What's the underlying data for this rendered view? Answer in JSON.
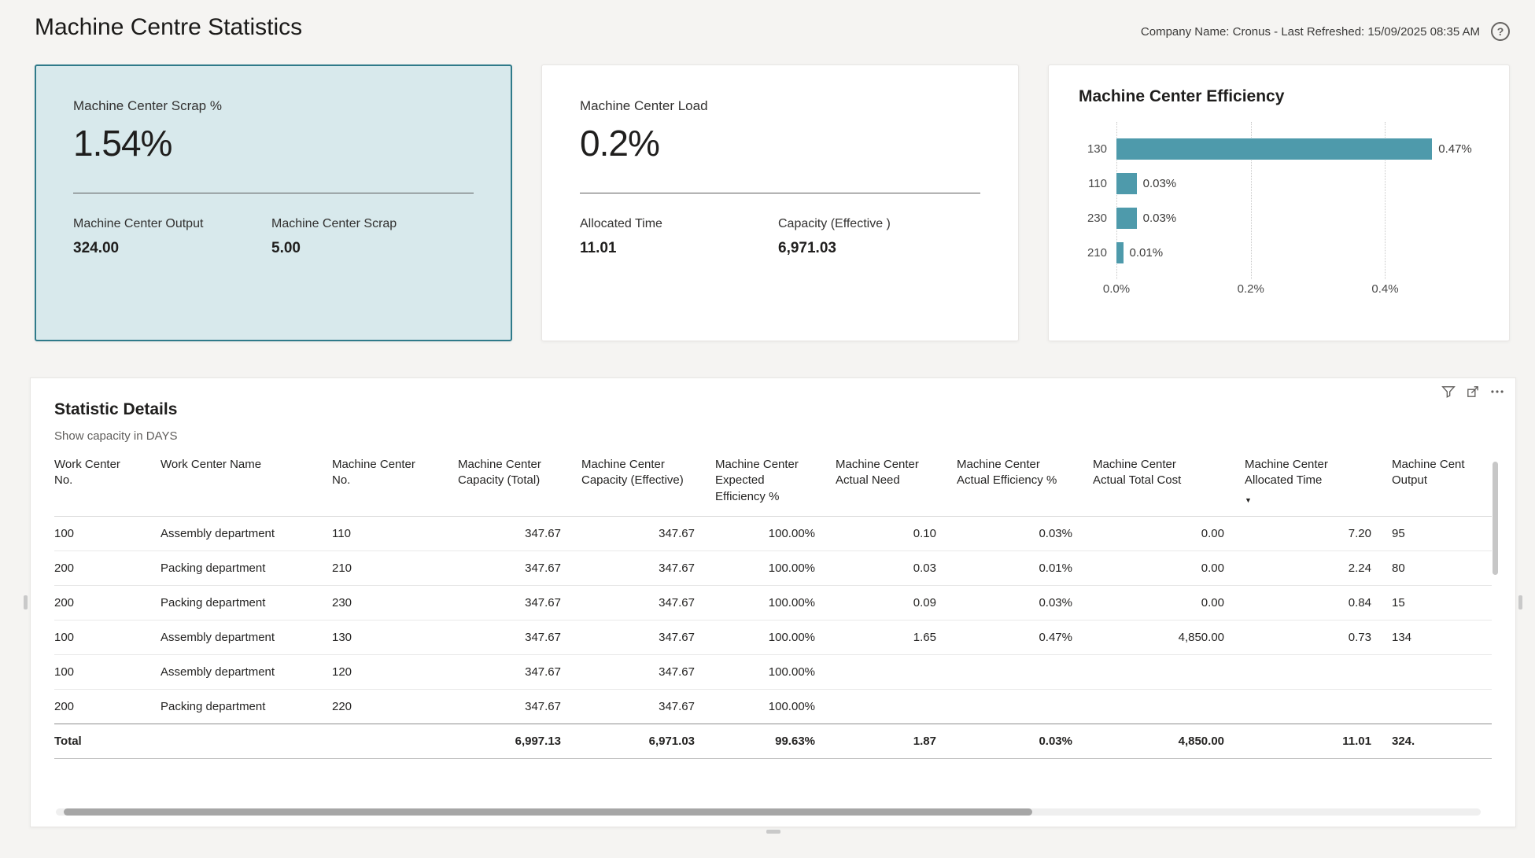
{
  "header": {
    "title": "Machine Centre Statistics",
    "refresh_info": "Company Name: Cronus - Last Refreshed: 15/09/2025 08:35 AM",
    "help_icon": "?"
  },
  "cards": {
    "scrap": {
      "title": "Machine Center Scrap %",
      "value": "1.54%",
      "selected": true,
      "metrics": [
        {
          "label": "Machine Center Output",
          "value": "324.00"
        },
        {
          "label": "Machine Center Scrap",
          "value": "5.00"
        }
      ]
    },
    "load": {
      "title": "Machine Center Load",
      "value": "0.2%",
      "metrics": [
        {
          "label": "Allocated Time",
          "value": "11.01"
        },
        {
          "label": "Capacity (Effective )",
          "value": "6,971.03"
        }
      ]
    },
    "efficiency": {
      "title": "Machine Center Efficiency",
      "chart_data": {
        "type": "bar",
        "orientation": "horizontal",
        "title": "Machine Center Efficiency",
        "categories": [
          "130",
          "110",
          "230",
          "210"
        ],
        "values": [
          0.47,
          0.03,
          0.03,
          0.01
        ],
        "value_labels": [
          "0.47%",
          "0.03%",
          "0.03%",
          "0.01%"
        ],
        "x_ticks": [
          0,
          0.2,
          0.4
        ],
        "x_tick_labels": [
          "0.0%",
          "0.2%",
          "0.4%"
        ],
        "xlim": [
          0,
          0.54
        ],
        "bar_color": "#4e9aab",
        "grid": "dotted-vertical",
        "legend": "none"
      }
    }
  },
  "details": {
    "title": "Statistic Details",
    "subtitle": "Show capacity in DAYS",
    "toolbar": [
      "filter",
      "focus-mode",
      "more-options"
    ],
    "columns": [
      {
        "label": "Work Center\nNo.",
        "align": "left"
      },
      {
        "label": "Work Center Name",
        "align": "left"
      },
      {
        "label": "Machine Center\nNo.",
        "align": "left"
      },
      {
        "label": "Machine Center\nCapacity (Total)",
        "align": "right"
      },
      {
        "label": "Machine Center\nCapacity (Effective)",
        "align": "right"
      },
      {
        "label": "Machine Center\nExpected\nEfficiency %",
        "align": "right"
      },
      {
        "label": "Machine Center\nActual Need",
        "align": "right"
      },
      {
        "label": "Machine Center\nActual Efficiency %",
        "align": "right"
      },
      {
        "label": "Machine Center\nActual Total Cost",
        "align": "right"
      },
      {
        "label": "Machine Center\nAllocated Time",
        "align": "right",
        "sort": "desc"
      },
      {
        "label": "Machine Cent\nOutput",
        "align": "left"
      }
    ],
    "rows": [
      [
        "100",
        "Assembly department",
        "110",
        "347.67",
        "347.67",
        "100.00%",
        "0.10",
        "0.03%",
        "0.00",
        "7.20",
        "95"
      ],
      [
        "200",
        "Packing department",
        "210",
        "347.67",
        "347.67",
        "100.00%",
        "0.03",
        "0.01%",
        "0.00",
        "2.24",
        "80"
      ],
      [
        "200",
        "Packing department",
        "230",
        "347.67",
        "347.67",
        "100.00%",
        "0.09",
        "0.03%",
        "0.00",
        "0.84",
        "15"
      ],
      [
        "100",
        "Assembly department",
        "130",
        "347.67",
        "347.67",
        "100.00%",
        "1.65",
        "0.47%",
        "4,850.00",
        "0.73",
        "134"
      ],
      [
        "100",
        "Assembly department",
        "120",
        "347.67",
        "347.67",
        "100.00%",
        "",
        "",
        "",
        "",
        ""
      ],
      [
        "200",
        "Packing department",
        "220",
        "347.67",
        "347.67",
        "100.00%",
        "",
        "",
        "",
        "",
        ""
      ]
    ],
    "total_row": [
      "Total",
      "",
      "",
      "6,997.13",
      "6,971.03",
      "99.63%",
      "1.87",
      "0.03%",
      "4,850.00",
      "11.01",
      "324."
    ]
  }
}
